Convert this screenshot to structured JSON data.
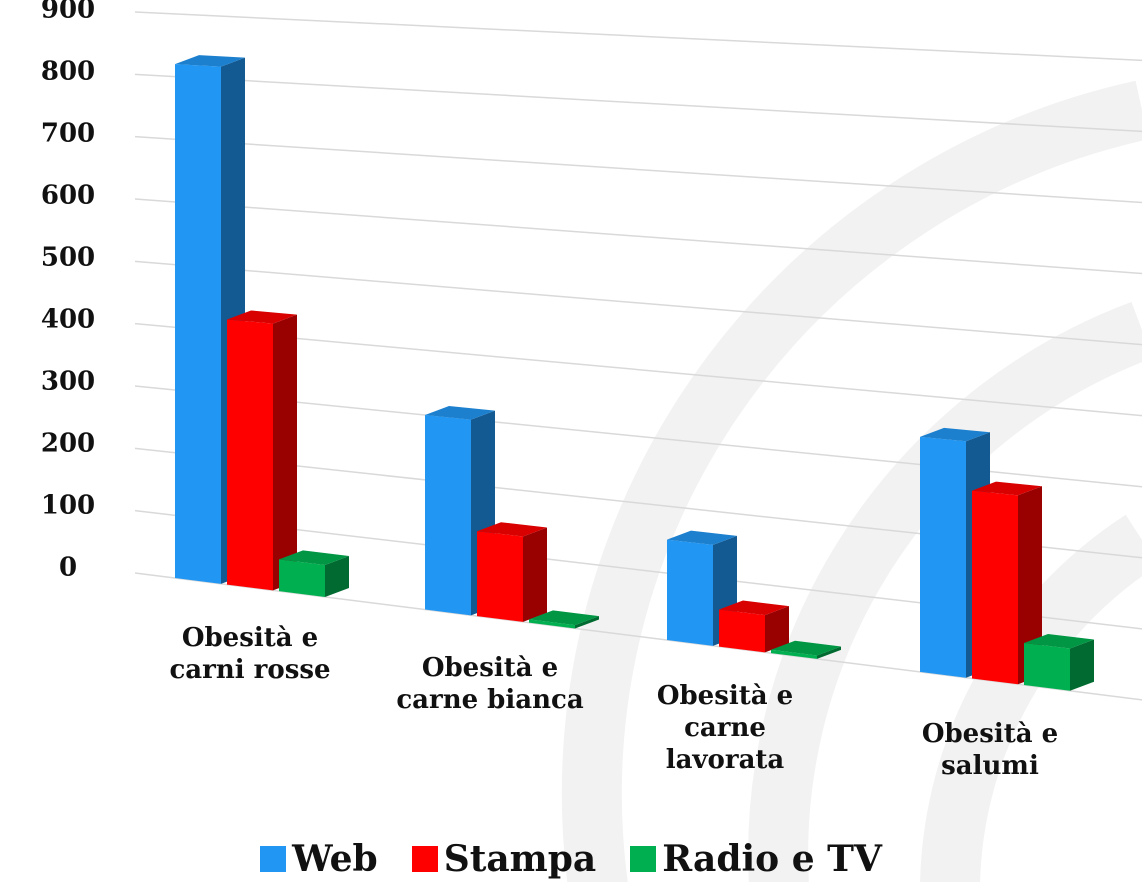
{
  "chart_data": {
    "type": "bar3d",
    "categories": [
      "Obesità e carni rosse",
      "Obesità e carne bianca",
      "Obesità e carne lavorata",
      "Obesità e salumi"
    ],
    "series": [
      {
        "name": "Web",
        "color": "#2196f3",
        "values": [
          820,
          300,
          150,
          340
        ]
      },
      {
        "name": "Stampa",
        "color": "#ff0000",
        "values": [
          420,
          130,
          55,
          270
        ]
      },
      {
        "name": "Radio e TV",
        "color": "#00b050",
        "values": [
          50,
          5,
          5,
          60
        ]
      }
    ],
    "ylim": [
      0,
      900
    ],
    "yticks": [
      0,
      100,
      200,
      300,
      400,
      500,
      600,
      700,
      800,
      900
    ],
    "grid": true
  }
}
